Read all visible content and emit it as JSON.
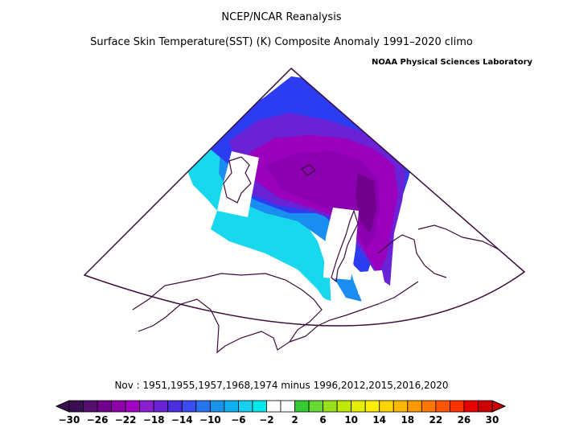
{
  "header": {
    "line1": "NCEP/NCAR Reanalysis",
    "line2": "Surface Skin Temperature(SST) (K) Composite Anomaly 1991–2020 climo",
    "credit": "NOAA Physical Sciences Laboratory"
  },
  "caption": "Nov : 1951,1955,1957,1968,1974 minus 1996,2012,2015,2016,2020",
  "colorbar": {
    "tick_labels": [
      "−30",
      "−26",
      "−22",
      "−18",
      "−14",
      "−10",
      "−6",
      "−2",
      "2",
      "6",
      "10",
      "14",
      "18",
      "22",
      "26",
      "30"
    ],
    "colors": [
      "#3b0d52",
      "#55106f",
      "#71008d",
      "#8d00a8",
      "#a200c2",
      "#8a1fcf",
      "#6a22d6",
      "#4b2ee0",
      "#3a4df0",
      "#2874f0",
      "#1893e8",
      "#10b0ee",
      "#18cfee",
      "#00e8ea",
      "#ffffff",
      "#ffffff",
      "#33cc33",
      "#66d933",
      "#99e01a",
      "#bfe800",
      "#e6ee00",
      "#ffee00",
      "#ffd500",
      "#ffb800",
      "#ff9900",
      "#ff7700",
      "#ff5500",
      "#ff3300",
      "#e80000",
      "#cc0000"
    ]
  },
  "map_colors": {
    "strong_negative": "#8a00b0",
    "deep_purple": "#9b00bd",
    "violet": "#6a22d6",
    "blue": "#2c3cf0",
    "mid_blue": "#1a8ef0",
    "cyan": "#18d8ee",
    "neutral": "#ffffff",
    "coast": "#3b0d3b"
  }
}
